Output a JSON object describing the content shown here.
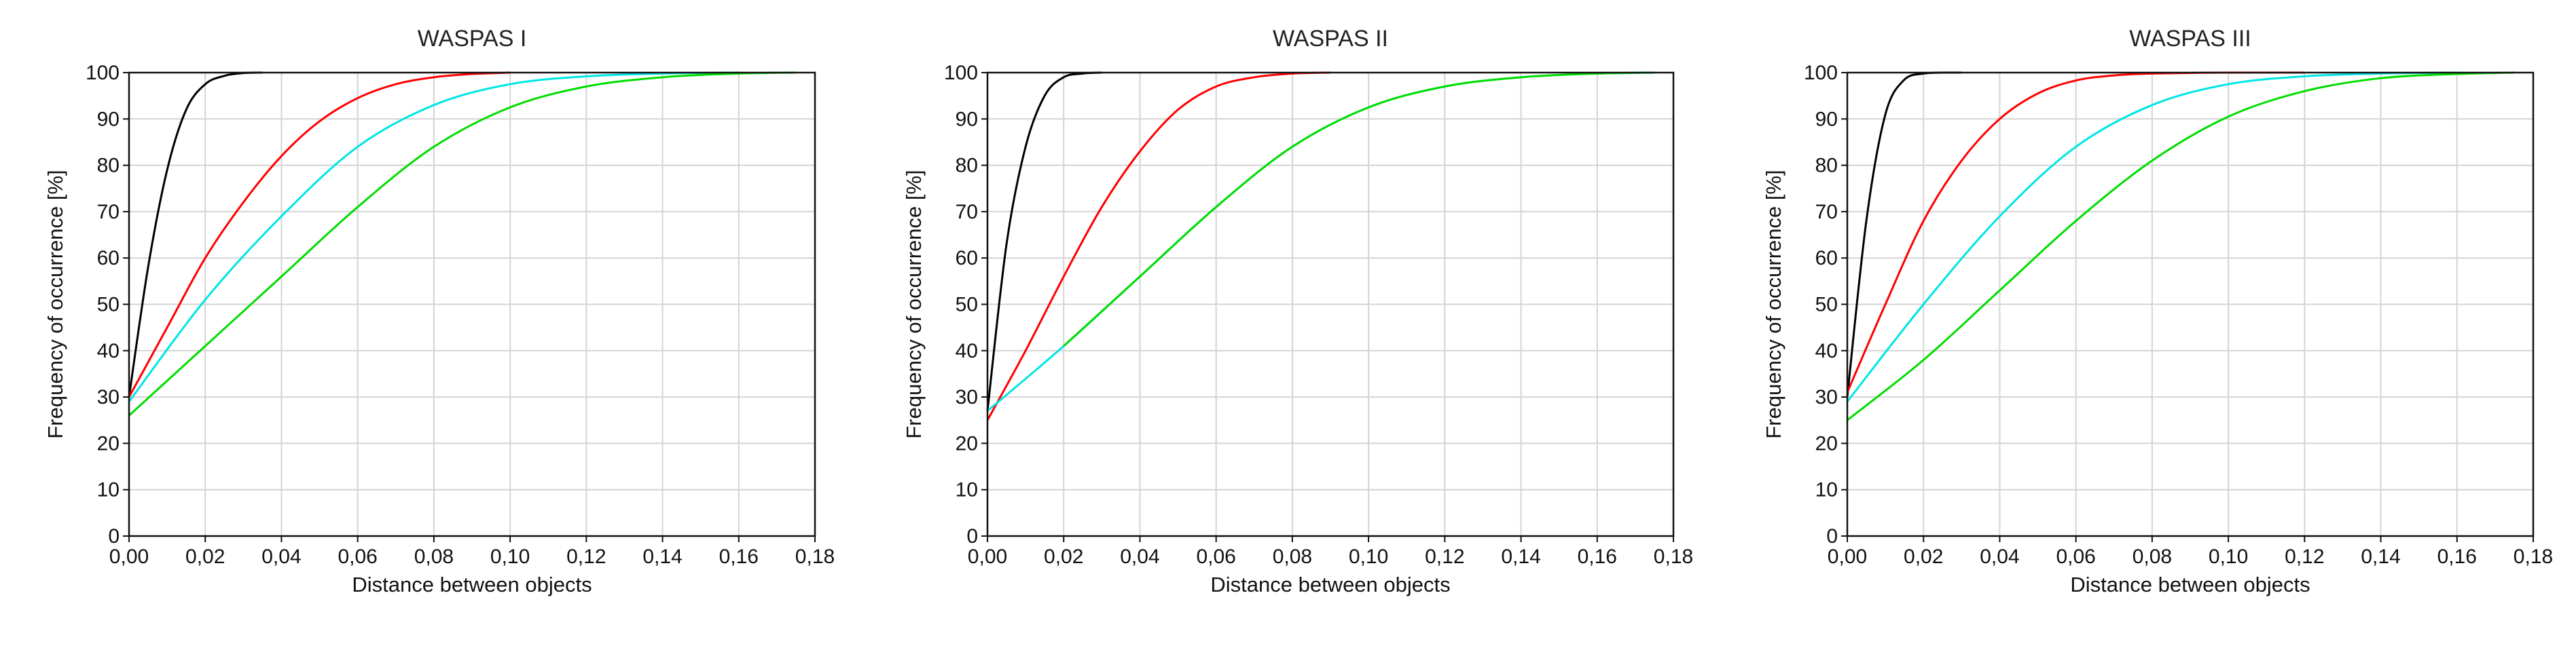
{
  "chart_data": [
    {
      "type": "line",
      "title": "WASPAS I",
      "xlabel": "Distance between objects",
      "ylabel": "Frequency of occurrence [%]",
      "xlim": [
        0,
        0.18
      ],
      "ylim": [
        0,
        100
      ],
      "xticks": [
        "0,00",
        "0,02",
        "0,04",
        "0,06",
        "0,08",
        "0,10",
        "0,12",
        "0,14",
        "0,16",
        "0,18"
      ],
      "yticks": [
        "0",
        "10",
        "20",
        "30",
        "40",
        "50",
        "60",
        "70",
        "80",
        "90",
        "100"
      ],
      "grid": true,
      "series": [
        {
          "color": "#000000",
          "x": [
            0,
            0.005,
            0.01,
            0.015,
            0.02,
            0.025,
            0.03,
            0.035
          ],
          "y": [
            30,
            58,
            79,
            92,
            97.5,
            99.3,
            99.9,
            100
          ]
        },
        {
          "color": "#ff0000",
          "x": [
            0,
            0.01,
            0.02,
            0.03,
            0.04,
            0.05,
            0.06,
            0.07,
            0.08,
            0.09,
            0.1
          ],
          "y": [
            30,
            45,
            60,
            72,
            82,
            89.5,
            94.5,
            97.5,
            99,
            99.7,
            100
          ]
        },
        {
          "color": "#00e5e5",
          "x": [
            0,
            0.02,
            0.04,
            0.06,
            0.08,
            0.1,
            0.12,
            0.14,
            0.16
          ],
          "y": [
            29,
            51,
            69,
            84,
            93,
            97.5,
            99.2,
            99.8,
            100
          ]
        },
        {
          "color": "#00dd00",
          "x": [
            0,
            0.02,
            0.04,
            0.06,
            0.08,
            0.1,
            0.12,
            0.14,
            0.16,
            0.175
          ],
          "y": [
            26,
            41,
            56,
            71,
            84,
            92.5,
            97,
            99,
            99.8,
            100
          ]
        }
      ]
    },
    {
      "type": "line",
      "title": "WASPAS II",
      "xlabel": "Distance between objects",
      "ylabel": "Frequency of occurrence [%]",
      "xlim": [
        0,
        0.18
      ],
      "ylim": [
        0,
        100
      ],
      "xticks": [
        "0,00",
        "0,02",
        "0,04",
        "0,06",
        "0,08",
        "0,10",
        "0,12",
        "0,14",
        "0,16",
        "0,18"
      ],
      "yticks": [
        "0",
        "10",
        "20",
        "30",
        "40",
        "50",
        "60",
        "70",
        "80",
        "90",
        "100"
      ],
      "grid": true,
      "series": [
        {
          "color": "#000000",
          "x": [
            0,
            0.005,
            0.01,
            0.015,
            0.02,
            0.025,
            0.03
          ],
          "y": [
            27,
            63,
            84,
            95,
            99,
            99.8,
            100
          ]
        },
        {
          "color": "#ff0000",
          "x": [
            0,
            0.01,
            0.02,
            0.03,
            0.04,
            0.05,
            0.06,
            0.07,
            0.08,
            0.09
          ],
          "y": [
            25,
            40,
            56,
            71,
            83,
            92,
            97,
            99,
            99.8,
            100
          ]
        },
        {
          "color": "#00e5e5",
          "x": [
            0,
            0.02,
            0.04,
            0.06,
            0.08,
            0.1,
            0.12,
            0.14,
            0.16,
            0.175
          ],
          "y": [
            27,
            41,
            56,
            71,
            84,
            92.5,
            97,
            99,
            99.8,
            100
          ]
        },
        {
          "color": "#00dd00",
          "x": [
            0.02,
            0.04,
            0.06,
            0.08,
            0.1,
            0.12,
            0.14,
            0.16,
            0.175
          ],
          "y": [
            41,
            56,
            71,
            84,
            92.5,
            97,
            99,
            99.8,
            100
          ]
        }
      ]
    },
    {
      "type": "line",
      "title": "WASPAS III",
      "xlabel": "Distance between objects",
      "ylabel": "Frequency of occurrence [%]",
      "xlim": [
        0,
        0.18
      ],
      "ylim": [
        0,
        100
      ],
      "xticks": [
        "0,00",
        "0,02",
        "0,04",
        "0,06",
        "0,08",
        "0,10",
        "0,12",
        "0,14",
        "0,16",
        "0,18"
      ],
      "yticks": [
        "0",
        "10",
        "20",
        "30",
        "40",
        "50",
        "60",
        "70",
        "80",
        "90",
        "100"
      ],
      "grid": true,
      "series": [
        {
          "color": "#000000",
          "x": [
            0,
            0.005,
            0.01,
            0.015,
            0.02,
            0.025,
            0.03
          ],
          "y": [
            30,
            68,
            91,
            98.5,
            99.8,
            100,
            100
          ]
        },
        {
          "color": "#ff0000",
          "x": [
            0,
            0.01,
            0.02,
            0.03,
            0.04,
            0.05,
            0.06,
            0.07,
            0.08,
            0.1,
            0.12
          ],
          "y": [
            31,
            50,
            68,
            81,
            90,
            95.5,
            98.3,
            99.4,
            99.8,
            100,
            100
          ]
        },
        {
          "color": "#00e5e5",
          "x": [
            0,
            0.02,
            0.04,
            0.06,
            0.08,
            0.1,
            0.12,
            0.14,
            0.16
          ],
          "y": [
            29,
            50,
            69,
            84,
            93,
            97.5,
            99.2,
            99.8,
            100
          ]
        },
        {
          "color": "#00dd00",
          "x": [
            0,
            0.02,
            0.04,
            0.06,
            0.08,
            0.1,
            0.12,
            0.14,
            0.16,
            0.175
          ],
          "y": [
            25,
            38,
            53,
            68,
            81,
            90.5,
            96,
            98.8,
            99.7,
            100
          ]
        }
      ]
    }
  ]
}
